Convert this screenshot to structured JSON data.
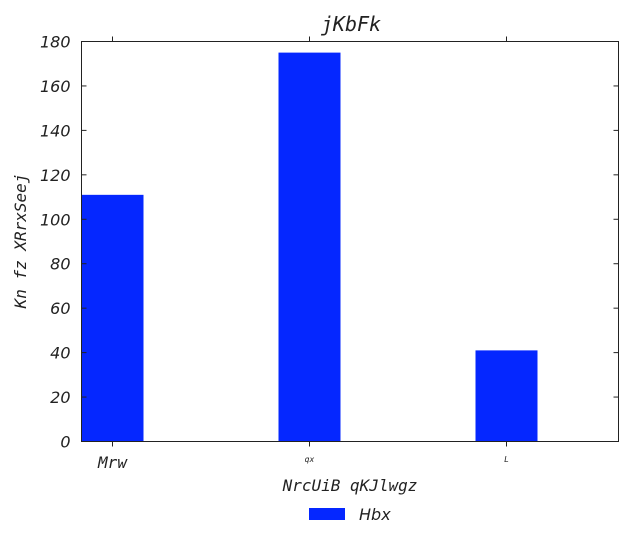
{
  "chart_data": {
    "type": "bar",
    "title": "jKbFk",
    "xlabel": "NrcUiB qKJlwgz",
    "ylabel": "Kn fz XRrxSeej",
    "categories": [
      "Mrw",
      "qx",
      "L"
    ],
    "series": [
      {
        "name": "Hbx",
        "values": [
          111,
          175,
          41
        ],
        "color": "#0527ff"
      }
    ],
    "ylim": [
      0,
      180
    ],
    "yticks": [
      0,
      20,
      40,
      60,
      80,
      100,
      120,
      140,
      160,
      180
    ],
    "grid": false,
    "legend_position": "bottom-center"
  }
}
